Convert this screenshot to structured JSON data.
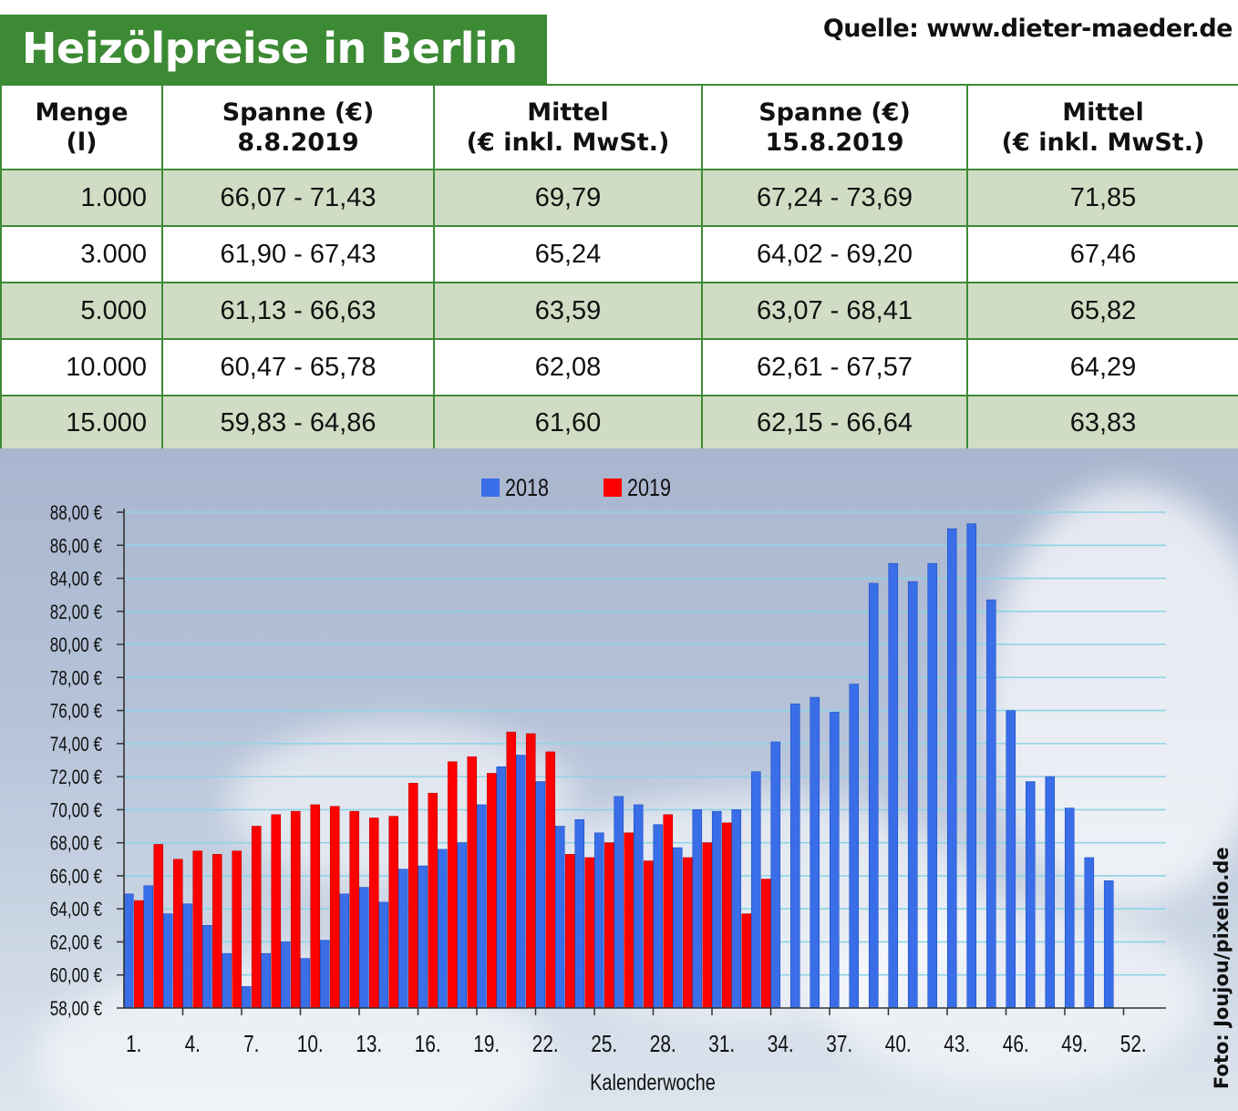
{
  "title": "Heizölpreise in Berlin",
  "source": "Quelle: www.dieter-maeder.de",
  "photo_credit": "Foto: Joujou/pixelio.de",
  "colors": {
    "green": "#3d8a35",
    "series_2018": "#3a6ee8",
    "series_2019": "#ff0000"
  },
  "table": {
    "headers": [
      [
        "Menge",
        "(l)"
      ],
      [
        "Spanne (€)",
        "8.8.2019"
      ],
      [
        "Mittel",
        "(€ inkl. MwSt.)"
      ],
      [
        "Spanne (€)",
        "15.8.2019"
      ],
      [
        "Mittel",
        "(€ inkl. MwSt.)"
      ]
    ],
    "rows": [
      [
        "1.000",
        "66,07 - 71,43",
        "69,79",
        "67,24 - 73,69",
        "71,85"
      ],
      [
        "3.000",
        "61,90 - 67,43",
        "65,24",
        "64,02 - 69,20",
        "67,46"
      ],
      [
        "5.000",
        "61,13 - 66,63",
        "63,59",
        "63,07 - 68,41",
        "65,82"
      ],
      [
        "10.000",
        "60,47 - 65,78",
        "62,08",
        "62,61 - 67,57",
        "64,29"
      ],
      [
        "15.000",
        "59,83 - 64,86",
        "61,60",
        "62,15 - 66,64",
        "63,83"
      ]
    ]
  },
  "chart_data": {
    "type": "bar",
    "title": "",
    "xlabel": "Kalenderwoche",
    "ylabel": "",
    "ylim": [
      58,
      88
    ],
    "y_ticks": [
      "58,00 €",
      "60,00 €",
      "62,00 €",
      "64,00 €",
      "66,00 €",
      "68,00 €",
      "70,00 €",
      "72,00 €",
      "74,00 €",
      "76,00 €",
      "78,00 €",
      "80,00 €",
      "82,00 €",
      "84,00 €",
      "86,00 €",
      "88,00 €"
    ],
    "x_tick_labels": [
      "1.",
      "4.",
      "7.",
      "10.",
      "13.",
      "16.",
      "19.",
      "22.",
      "25.",
      "28.",
      "31.",
      "34.",
      "37.",
      "40.",
      "43.",
      "46.",
      "49.",
      "52."
    ],
    "grid": true,
    "legend_position": "top-center",
    "series": [
      {
        "name": "2018",
        "x": [
          1,
          2,
          3,
          4,
          5,
          6,
          7,
          8,
          9,
          10,
          11,
          12,
          13,
          14,
          15,
          16,
          17,
          18,
          19,
          20,
          21,
          22,
          23,
          24,
          25,
          26,
          27,
          28,
          29,
          30,
          31,
          32,
          33,
          34,
          35,
          36,
          37,
          38,
          39,
          40,
          41,
          42,
          43,
          44,
          45,
          46,
          47,
          48,
          49,
          50,
          51
        ],
        "values": [
          64.9,
          65.4,
          63.7,
          64.3,
          63.0,
          61.3,
          59.3,
          61.3,
          62.0,
          61.0,
          62.1,
          64.9,
          65.3,
          64.4,
          66.4,
          66.6,
          67.6,
          68.0,
          70.3,
          72.6,
          73.3,
          71.7,
          69.0,
          69.4,
          68.6,
          70.8,
          70.3,
          69.1,
          67.7,
          70.0,
          69.9,
          70.0,
          72.3,
          74.1,
          76.4,
          76.8,
          75.9,
          77.6,
          83.7,
          84.9,
          83.8,
          84.9,
          87.0,
          87.3,
          82.7,
          76.0,
          71.7,
          72.0,
          70.1,
          67.1,
          65.7
        ]
      },
      {
        "name": "2019",
        "x": [
          1,
          2,
          3,
          4,
          5,
          6,
          7,
          8,
          9,
          10,
          11,
          12,
          13,
          14,
          15,
          16,
          17,
          18,
          19,
          20,
          21,
          22,
          23,
          24,
          25,
          26,
          27,
          28,
          29,
          30,
          31,
          32,
          33
        ],
        "values": [
          64.5,
          67.9,
          67.0,
          67.5,
          67.3,
          67.5,
          69.0,
          69.7,
          69.9,
          70.3,
          70.2,
          69.9,
          69.5,
          69.6,
          71.6,
          71.0,
          72.9,
          73.2,
          72.2,
          74.7,
          74.6,
          73.5,
          67.3,
          67.1,
          68.0,
          68.6,
          66.9,
          69.7,
          67.1,
          68.0,
          69.2,
          63.7,
          65.8
        ]
      }
    ]
  }
}
